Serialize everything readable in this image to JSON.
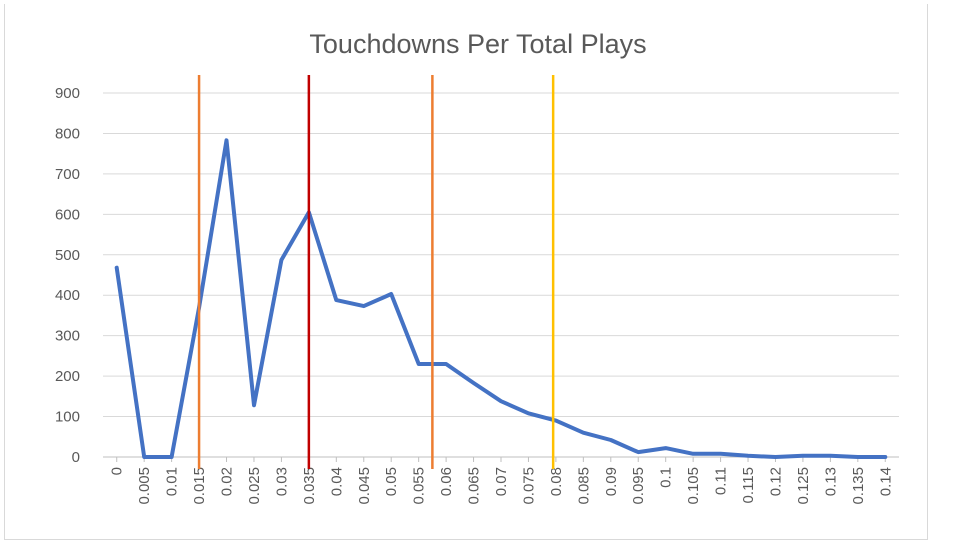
{
  "chart_data": {
    "type": "line",
    "title": "Touchdowns Per Total Plays",
    "xlabel": "",
    "ylabel": "",
    "categories": [
      "0",
      "0.005",
      "0.01",
      "0.015",
      "0.02",
      "0.025",
      "0.03",
      "0.035",
      "0.04",
      "0.045",
      "0.05",
      "0.055",
      "0.06",
      "0.065",
      "0.07",
      "0.075",
      "0.08",
      "0.085",
      "0.09",
      "0.095",
      "0.1",
      "0.105",
      "0.11",
      "0.115",
      "0.12",
      "0.125",
      "0.13",
      "0.135",
      "0.14"
    ],
    "series": [
      {
        "color": "#4472c4",
        "values": [
          468,
          0,
          0,
          370,
          783,
          128,
          487,
          605,
          388,
          373,
          403,
          230,
          230,
          183,
          138,
          108,
          90,
          60,
          42,
          12,
          22,
          8,
          8,
          3,
          0,
          3,
          3,
          0,
          0
        ]
      }
    ],
    "ylim": [
      0,
      900
    ],
    "yticks": [
      0,
      100,
      200,
      300,
      400,
      500,
      600,
      700,
      800,
      900
    ],
    "grid": true,
    "reference_lines": [
      {
        "x": 0.015,
        "color": "#ed7d31"
      },
      {
        "x": 0.035,
        "color": "#c00000"
      },
      {
        "x": 0.0575,
        "color": "#ed7d31"
      },
      {
        "x": 0.0795,
        "color": "#ffc000"
      }
    ]
  }
}
